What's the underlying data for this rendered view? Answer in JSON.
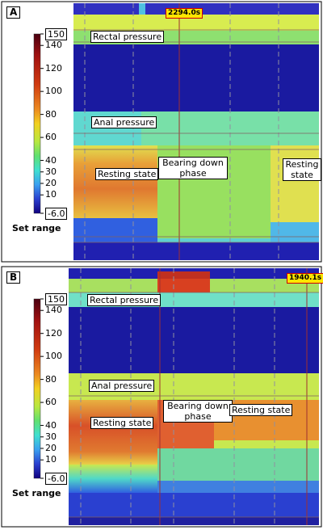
{
  "panels": [
    {
      "label": "A",
      "time_marker": "2294.0s",
      "colorbar": {
        "range_label": "Set range",
        "ticks": [
          150,
          140,
          120,
          100,
          80,
          60,
          40,
          30,
          20,
          10,
          {
            "value": -6,
            "label": "-6.0"
          }
        ]
      },
      "annotations": [
        "Rectal pressure",
        "Anal pressure",
        "Resting state",
        "Bearing down phase",
        "Resting state"
      ]
    },
    {
      "label": "B",
      "time_marker": "1940.1s",
      "colorbar": {
        "range_label": "Set range",
        "ticks": [
          150,
          140,
          120,
          100,
          80,
          60,
          40,
          30,
          20,
          10,
          {
            "value": -6,
            "label": "-6.0"
          }
        ]
      },
      "annotations": [
        "Rectal pressure",
        "Anal pressure",
        "Resting state",
        "Bearing down phase",
        "Resting state"
      ]
    }
  ]
}
